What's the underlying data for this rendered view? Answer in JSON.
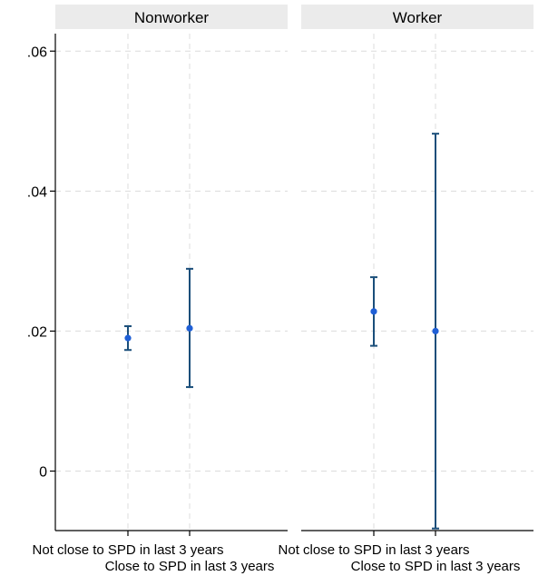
{
  "chart_data": {
    "type": "scatter",
    "subtype": "point-with-error-bars",
    "ylim": [
      -0.0085,
      0.0625
    ],
    "yticks": [
      {
        "value": 0.06,
        "label": ".06"
      },
      {
        "value": 0.04,
        "label": ".04"
      },
      {
        "value": 0.02,
        "label": ".02"
      },
      {
        "value": 0,
        "label": "0"
      }
    ],
    "categories": [
      "Not close to SPD in last 3 years",
      "Close to SPD in last 3 years"
    ],
    "grid": true,
    "colors": {
      "point": "#1f5fd6",
      "errorbar": "#1a4e7a",
      "grid": "#dcdcdc",
      "panel_header": "#ebebeb"
    },
    "panels": [
      {
        "title": "Nonworker",
        "points": [
          {
            "category": "Not close to SPD in last 3 years",
            "value": 0.019,
            "lower": 0.0173,
            "upper": 0.0207
          },
          {
            "category": "Close to SPD in last 3 years",
            "value": 0.0204,
            "lower": 0.012,
            "upper": 0.0289
          }
        ]
      },
      {
        "title": "Worker",
        "points": [
          {
            "category": "Not close to SPD in last 3 years",
            "value": 0.0228,
            "lower": 0.0179,
            "upper": 0.0277
          },
          {
            "category": "Close to SPD in last 3 years",
            "value": 0.02,
            "lower": -0.0082,
            "upper": 0.0482
          }
        ]
      }
    ]
  }
}
